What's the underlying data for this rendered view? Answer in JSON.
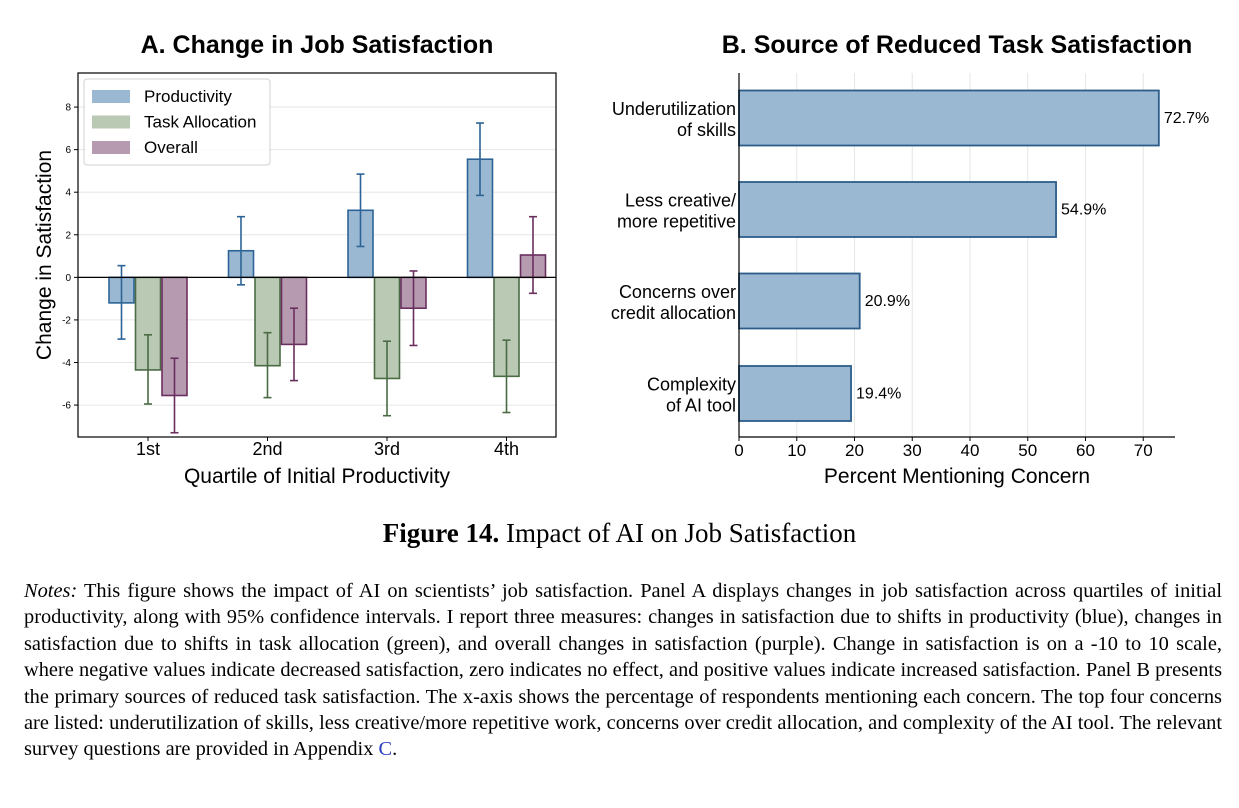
{
  "chart_data": [
    {
      "type": "bar",
      "title": "A. Change in Job Satisfaction",
      "xlabel": "Quartile of Initial Productivity",
      "ylabel": "Change in Satisfaction",
      "categories": [
        "1st",
        "2nd",
        "3rd",
        "4th"
      ],
      "ylim": [
        -7.5,
        9.6
      ],
      "yticks": [
        -6,
        -4,
        -2,
        0,
        2,
        4,
        6,
        8
      ],
      "grid": true,
      "legend_position": "top-left",
      "series": [
        {
          "name": "Productivity",
          "color": "#9bb8d3",
          "edge": "#2c6497",
          "values": [
            -1.2,
            1.25,
            3.15,
            5.55
          ],
          "ci_low": [
            -2.9,
            -0.35,
            1.45,
            3.85
          ],
          "ci_high": [
            0.55,
            2.85,
            4.85,
            7.25
          ]
        },
        {
          "name": "Task Allocation",
          "color": "#b9c9b3",
          "edge": "#4b6b44",
          "values": [
            -4.35,
            -4.15,
            -4.75,
            -4.65
          ],
          "ci_low": [
            -5.95,
            -5.65,
            -6.5,
            -6.35
          ],
          "ci_high": [
            -2.7,
            -2.6,
            -3.0,
            -2.95
          ]
        },
        {
          "name": "Overall",
          "color": "#b59ab0",
          "edge": "#6b2f5f",
          "values": [
            -5.55,
            -3.15,
            -1.45,
            1.05
          ],
          "ci_low": [
            -7.3,
            -4.85,
            -3.2,
            -0.75
          ],
          "ci_high": [
            -3.8,
            -1.45,
            0.3,
            2.85
          ]
        }
      ]
    },
    {
      "type": "bar",
      "orientation": "horizontal",
      "title": "B. Source of Reduced Task Satisfaction",
      "xlabel": "Percent Mentioning Concern",
      "ylabel": "",
      "categories": [
        [
          "Underutilization",
          "of skills"
        ],
        [
          "Less creative/",
          "more repetitive"
        ],
        [
          "Concerns over",
          "credit allocation"
        ],
        [
          "Complexity",
          "of AI tool"
        ]
      ],
      "values": [
        72.7,
        54.9,
        20.9,
        19.4
      ],
      "value_labels": [
        "72.7%",
        "54.9%",
        "20.9%",
        "19.4%"
      ],
      "xlim": [
        0,
        75.5
      ],
      "xticks": [
        0,
        10,
        20,
        30,
        40,
        50,
        60,
        70
      ],
      "grid": true,
      "color": "#9bb8d3",
      "edge": "#2c5d8a"
    }
  ],
  "caption": {
    "label": "Figure 14.",
    "text": " Impact of AI on Job Satisfaction"
  },
  "notes": {
    "label": "Notes:",
    "text": " This figure shows the impact of AI on scientists’ job satisfaction. Panel A displays changes in job satisfaction across quartiles of initial productivity, along with 95% confidence intervals. I report three measures: changes in satisfaction due to shifts in productivity (blue), changes in satisfaction due to shifts in task allocation (green), and overall changes in satisfaction (purple). Change in satisfaction is on a -10 to 10 scale, where negative values indicate decreased satisfaction, zero indicates no effect, and positive values indicate increased satisfaction. Panel B presents the primary sources of reduced task satisfaction. The x-axis shows the percentage of respondents mentioning each concern. The top four concerns are listed: underutilization of skills, less creative/more repetitive work, concerns over credit allocation, and complexity of the AI tool. The relevant survey questions are provided in Appendix ",
    "link": "C",
    "end": "."
  }
}
